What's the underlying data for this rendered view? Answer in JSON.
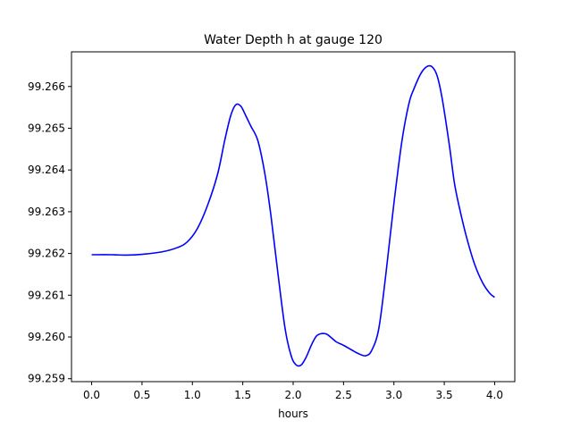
{
  "chart_data": {
    "type": "line",
    "title": "Water Depth h at gauge 120",
    "xlabel": "hours",
    "ylabel": "",
    "xlim": [
      -0.2,
      4.2
    ],
    "ylim": [
      99.25893,
      99.26683
    ],
    "xticks": [
      0.0,
      0.5,
      1.0,
      1.5,
      2.0,
      2.5,
      3.0,
      3.5,
      4.0
    ],
    "xtick_labels": [
      "0.0",
      "0.5",
      "1.0",
      "1.5",
      "2.0",
      "2.5",
      "3.0",
      "3.5",
      "4.0"
    ],
    "yticks": [
      99.259,
      99.26,
      99.261,
      99.262,
      99.263,
      99.264,
      99.265,
      99.266
    ],
    "ytick_labels": [
      "99.259",
      "99.260",
      "99.261",
      "99.262",
      "99.263",
      "99.264",
      "99.265",
      "99.266"
    ],
    "grid": false,
    "colors": {
      "line": "#0000ff"
    },
    "series": [
      {
        "x": [
          0.0,
          0.2,
          0.35,
          0.5,
          0.7,
          0.85,
          0.95,
          1.05,
          1.15,
          1.25,
          1.32,
          1.38,
          1.43,
          1.48,
          1.53,
          1.58,
          1.65,
          1.72,
          1.78,
          1.85,
          1.92,
          1.98,
          2.03,
          2.08,
          2.13,
          2.18,
          2.23,
          2.28,
          2.33,
          2.38,
          2.43,
          2.5,
          2.58,
          2.65,
          2.72,
          2.78,
          2.85,
          2.92,
          3.0,
          3.08,
          3.15,
          3.2,
          3.27,
          3.33,
          3.38,
          3.43,
          3.48,
          3.55,
          3.6,
          3.65,
          3.72,
          3.8,
          3.88,
          3.95,
          4.0
        ],
        "y": [
          99.26197,
          99.26197,
          99.26196,
          99.26198,
          99.26204,
          99.26214,
          99.26228,
          99.2626,
          99.26315,
          99.2639,
          99.2647,
          99.2653,
          99.26556,
          99.26553,
          99.2653,
          99.26505,
          99.2647,
          99.2639,
          99.2629,
          99.2615,
          99.2602,
          99.25955,
          99.25933,
          99.25933,
          99.25952,
          99.2598,
          99.26002,
          99.26008,
          99.26007,
          99.25998,
          99.25988,
          99.2598,
          99.25969,
          99.2596,
          99.25955,
          99.25968,
          99.2602,
          99.2615,
          99.2632,
          99.2647,
          99.2656,
          99.26595,
          99.26632,
          99.26648,
          99.26647,
          99.26625,
          99.2657,
          99.2646,
          99.2637,
          99.2631,
          99.2624,
          99.26175,
          99.2613,
          99.26105,
          99.26095
        ]
      }
    ]
  }
}
